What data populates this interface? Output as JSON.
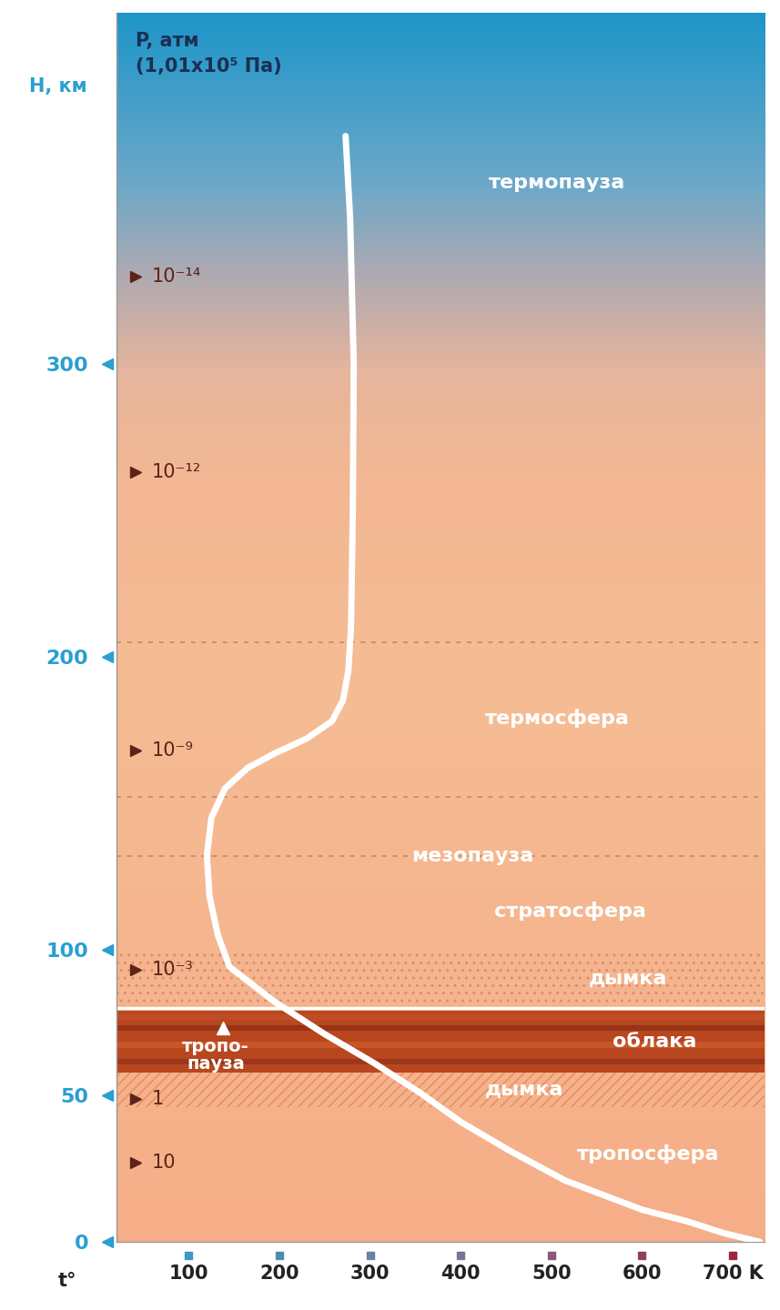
{
  "chart_data": {
    "type": "line",
    "x_label": "t°",
    "y_label": "H, км",
    "pressure_label": "P, атм\n(1,01x10⁵ Па)",
    "xlim": [
      20,
      735
    ],
    "xticks": [
      100,
      200,
      300,
      400,
      500,
      600,
      {
        "value": 700,
        "label": "700 K"
      }
    ],
    "ylim": [
      0,
      420
    ],
    "yticks": [
      0,
      50,
      100,
      200,
      300
    ],
    "grid": false,
    "series": [
      {
        "color": "#ffffff",
        "temperature": [
          730,
          690,
          650,
          600,
          515,
          455,
          400,
          355,
          305,
          250,
          195,
          145,
          132,
          123,
          120,
          125,
          140,
          165,
          195,
          230,
          258,
          270,
          276,
          279,
          281,
          282,
          278,
          273
        ],
        "height": [
          0,
          3,
          7,
          11,
          21,
          31,
          41,
          51,
          61,
          71,
          82,
          94,
          105,
          118,
          132,
          145,
          155,
          162,
          167,
          172,
          178,
          185,
          195,
          210,
          250,
          300,
          350,
          378
        ]
      }
    ],
    "pressure_levels": [
      {
        "height": 330,
        "label": "10⁻¹⁴"
      },
      {
        "height": 263,
        "label": "10⁻¹²"
      },
      {
        "height": 168,
        "label": "10⁻⁹"
      },
      {
        "height": 93,
        "label": "10⁻³"
      },
      {
        "height": 49,
        "label": "1"
      },
      {
        "height": 27,
        "label": "10"
      }
    ],
    "dashed_lines": [
      205,
      152,
      132
    ],
    "layers": {
      "lower_haze": {
        "label": "дымка",
        "bottom": 46,
        "top": 58
      },
      "clouds": {
        "label": "облака",
        "bottom": 58,
        "top": 79
      },
      "upper_haze": {
        "label": "дымка",
        "bottom": 80,
        "top": 100
      }
    },
    "region_labels": [
      {
        "label": "термопауза",
        "height": 362
      },
      {
        "label": "термосфера",
        "height": 179
      },
      {
        "label": "мезопауза",
        "height": 132
      },
      {
        "label": "стратосфера",
        "height": 113
      },
      {
        "label": "тропосфера",
        "height": 30
      }
    ],
    "tropopause": {
      "label": "тропо-\nпауза",
      "temperature": 138,
      "height": 73
    }
  }
}
